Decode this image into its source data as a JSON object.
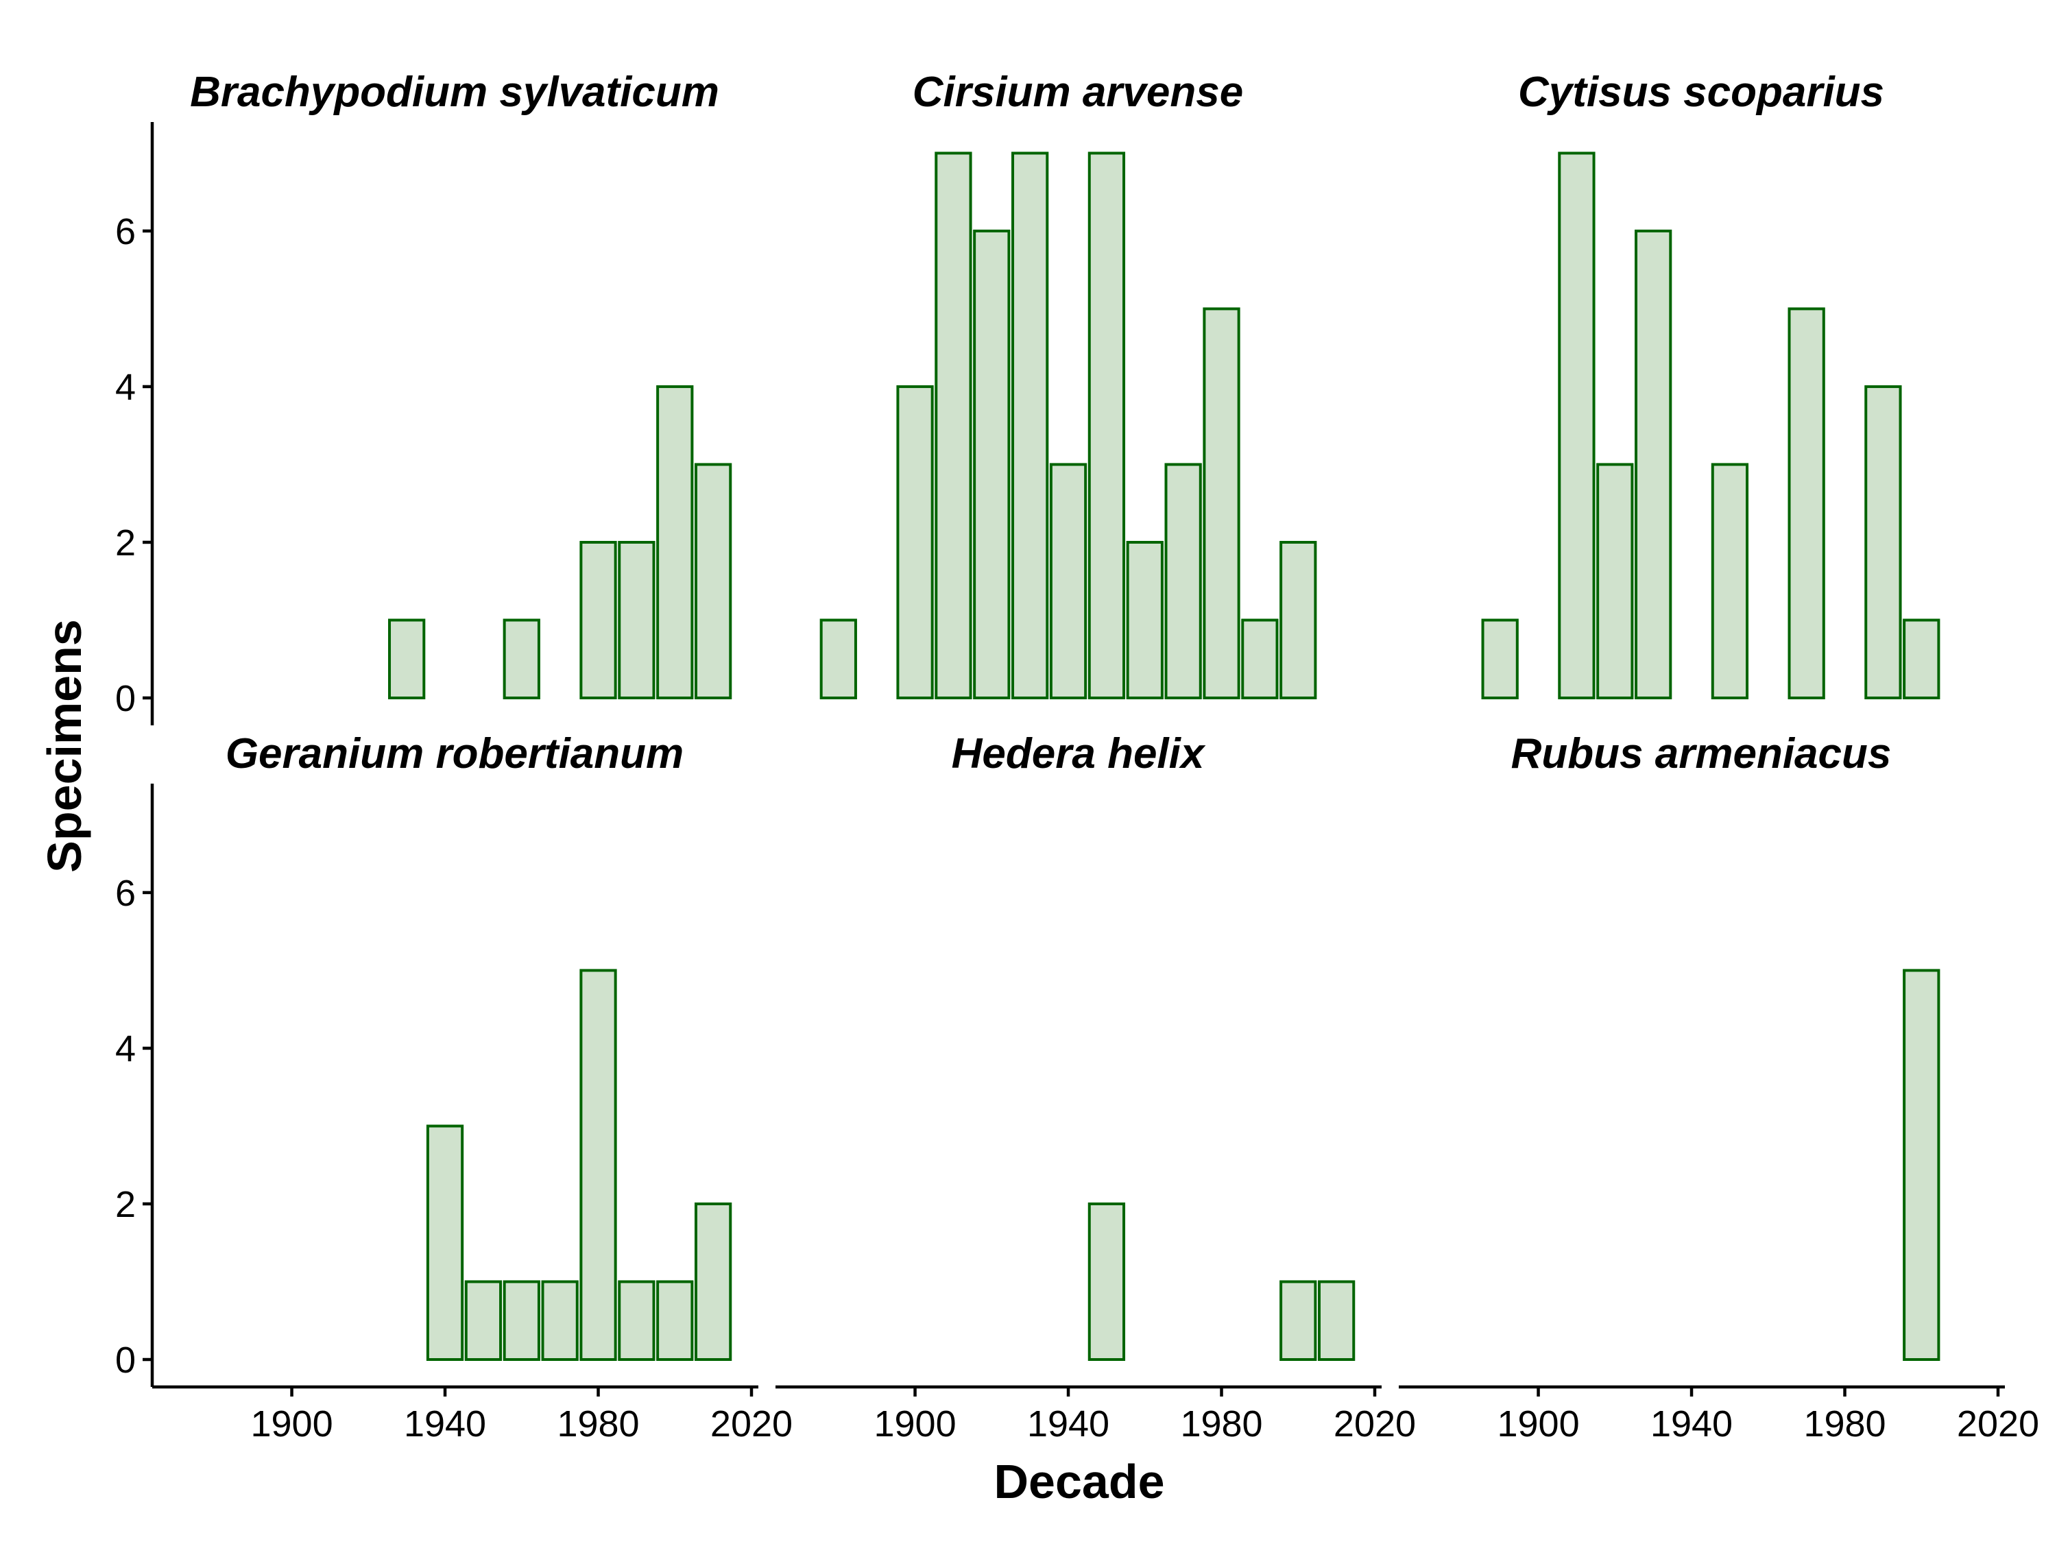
{
  "chart_data": {
    "type": "bar",
    "xlabel": "Decade",
    "ylabel": "Specimens",
    "xlim": [
      1865,
      2020
    ],
    "ylim": [
      0,
      7.4
    ],
    "x_ticks": [
      1900,
      1940,
      1980,
      2020
    ],
    "y_ticks": [
      0,
      2,
      4,
      6
    ],
    "bar_width_years": 9,
    "colors": {
      "bar_fill": "#d0e2cd",
      "bar_stroke": "#006400"
    },
    "panels": [
      {
        "title": "Brachypodium sylvaticum",
        "bars": [
          {
            "x": 1930,
            "y": 1
          },
          {
            "x": 1960,
            "y": 1
          },
          {
            "x": 1980,
            "y": 2
          },
          {
            "x": 1990,
            "y": 2
          },
          {
            "x": 2000,
            "y": 4
          },
          {
            "x": 2010,
            "y": 3
          }
        ]
      },
      {
        "title": "Cirsium arvense",
        "bars": [
          {
            "x": 1880,
            "y": 1
          },
          {
            "x": 1900,
            "y": 4
          },
          {
            "x": 1910,
            "y": 7
          },
          {
            "x": 1920,
            "y": 6
          },
          {
            "x": 1930,
            "y": 7
          },
          {
            "x": 1940,
            "y": 3
          },
          {
            "x": 1950,
            "y": 7
          },
          {
            "x": 1960,
            "y": 2
          },
          {
            "x": 1970,
            "y": 3
          },
          {
            "x": 1980,
            "y": 5
          },
          {
            "x": 1990,
            "y": 1
          },
          {
            "x": 2000,
            "y": 2
          }
        ]
      },
      {
        "title": "Cytisus scoparius",
        "bars": [
          {
            "x": 1890,
            "y": 1
          },
          {
            "x": 1910,
            "y": 7
          },
          {
            "x": 1920,
            "y": 3
          },
          {
            "x": 1930,
            "y": 6
          },
          {
            "x": 1950,
            "y": 3
          },
          {
            "x": 1970,
            "y": 5
          },
          {
            "x": 1990,
            "y": 4
          },
          {
            "x": 2000,
            "y": 1
          }
        ]
      },
      {
        "title": "Geranium robertianum",
        "bars": [
          {
            "x": 1940,
            "y": 3
          },
          {
            "x": 1950,
            "y": 1
          },
          {
            "x": 1960,
            "y": 1
          },
          {
            "x": 1970,
            "y": 1
          },
          {
            "x": 1980,
            "y": 5
          },
          {
            "x": 1990,
            "y": 1
          },
          {
            "x": 2000,
            "y": 1
          },
          {
            "x": 2010,
            "y": 2
          }
        ]
      },
      {
        "title": "Hedera helix",
        "bars": [
          {
            "x": 1950,
            "y": 2
          },
          {
            "x": 2000,
            "y": 1
          },
          {
            "x": 2010,
            "y": 1
          }
        ]
      },
      {
        "title": "Rubus armeniacus",
        "bars": [
          {
            "x": 2000,
            "y": 5
          }
        ]
      }
    ]
  }
}
